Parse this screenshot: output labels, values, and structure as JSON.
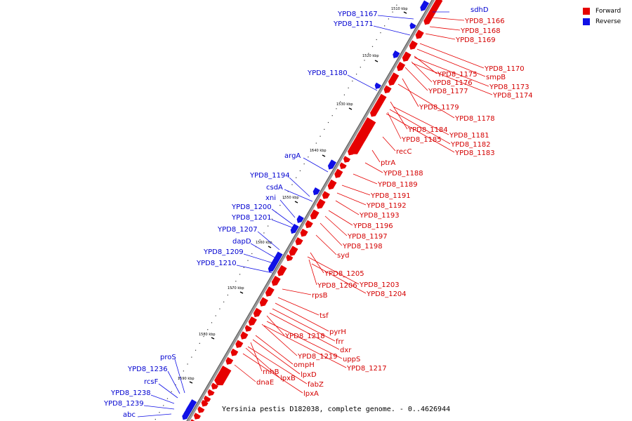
{
  "legend": {
    "forward": {
      "label": "Forward",
      "color": "#e60000"
    },
    "reverse": {
      "label": "Reverse",
      "color": "#1010e6"
    }
  },
  "caption": "Yersinia pestis D182038, complete genome. - 0..4626944",
  "ticks": [
    "1510 kbp",
    "1520 kbp",
    "1530 kbp",
    "1540 kbp",
    "1550 kbp",
    "1560 kbp",
    "1570 kbp",
    "1580 kbp",
    "1590 kbp"
  ],
  "reverse_labels": [
    "YPD8_1167",
    "YPD8_1171",
    "YPD8_1180",
    "argA",
    "YPD8_1194",
    "csdA",
    "xni",
    "YPD8_1200",
    "YPD8_1201",
    "YPD8_1207",
    "dapD",
    "YPD8_1209",
    "YPD8_1210",
    "proS",
    "YPD8_1236",
    "rcsF",
    "YPD8_1238",
    "YPD8_1239",
    "abc",
    "sdhD"
  ],
  "forward_labels": [
    "YPD8_1166",
    "YPD8_1168",
    "YPD8_1169",
    "YPD8_1170",
    "smpB",
    "YPD8_1175",
    "YPD8_1176",
    "YPD8_1173",
    "YPD8_1177",
    "YPD8_1174",
    "YPD8_1179",
    "YPD8_1178",
    "YPD8_1184",
    "YPD8_1181",
    "YPD8_1185",
    "YPD8_1182",
    "recC",
    "YPD8_1183",
    "ptrA",
    "YPD8_1188",
    "YPD8_1189",
    "YPD8_1191",
    "YPD8_1192",
    "YPD8_1193",
    "YPD8_1196",
    "YPD8_1197",
    "YPD8_1198",
    "syd",
    "YPD8_1205",
    "YPD8_1203",
    "YPD8_1206",
    "YPD8_1204",
    "rpsB",
    "tsf",
    "pyrH",
    "frr",
    "YPD8_1218",
    "dxr",
    "YPD8_1219",
    "uppS",
    "ompH",
    "YPD8_1217",
    "rnhB",
    "lpxD",
    "lpxB",
    "dnaE",
    "fabZ",
    "lpxA"
  ]
}
